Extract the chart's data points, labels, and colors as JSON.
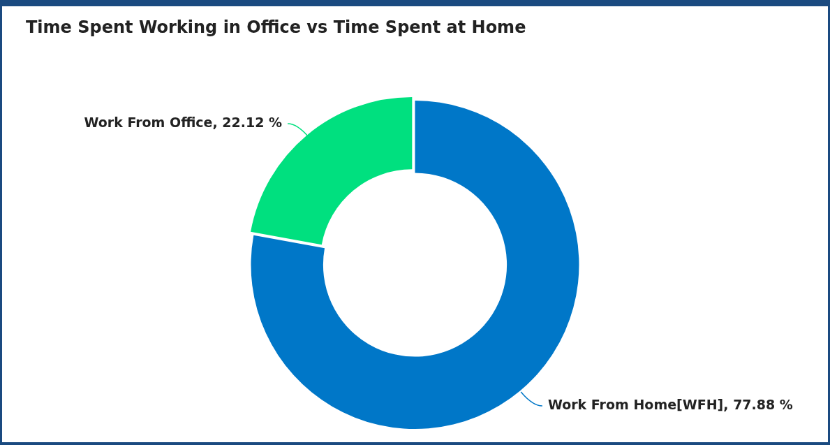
{
  "chart_data": {
    "type": "donut",
    "title": "Time Spent Working in Office vs Time Spent at Home",
    "categories": [
      "Work From Home[WFH]",
      "Work From Office"
    ],
    "values": [
      77.88,
      22.12
    ],
    "colors": [
      "#0077c8",
      "#00e07f"
    ],
    "value_labels": [
      "77.88 %",
      "22.12 %"
    ],
    "legend": false
  }
}
